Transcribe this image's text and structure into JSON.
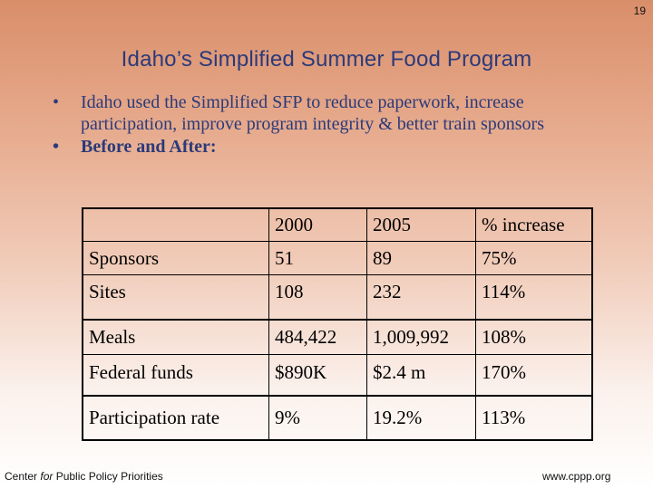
{
  "page_number": "19",
  "title": "Idaho’s Simplified Summer Food Program",
  "bullets": [
    {
      "marker": "•",
      "text": "Idaho used the Simplified SFP to reduce paperwork, increase participation, improve program integrity & better train sponsors"
    },
    {
      "marker": "•",
      "text": "Before and After:"
    }
  ],
  "table": {
    "headers": [
      "",
      "2000",
      "2005",
      "% increase"
    ],
    "rows": [
      [
        "Sponsors",
        "51",
        "89",
        "75%"
      ],
      [
        "Sites",
        "108",
        "232",
        "114%"
      ],
      [
        "Meals",
        "484,422",
        "1,009,992",
        "108%"
      ],
      [
        "Federal funds",
        "$890K",
        "$2.4 m",
        "170%"
      ],
      [
        "Participation rate",
        "9%",
        "19.2%",
        "113%"
      ]
    ]
  },
  "footer": {
    "org_prefix": "Center ",
    "org_italic": "for",
    "org_suffix": " Public Policy Priorities",
    "url": "www.cppp.org"
  }
}
